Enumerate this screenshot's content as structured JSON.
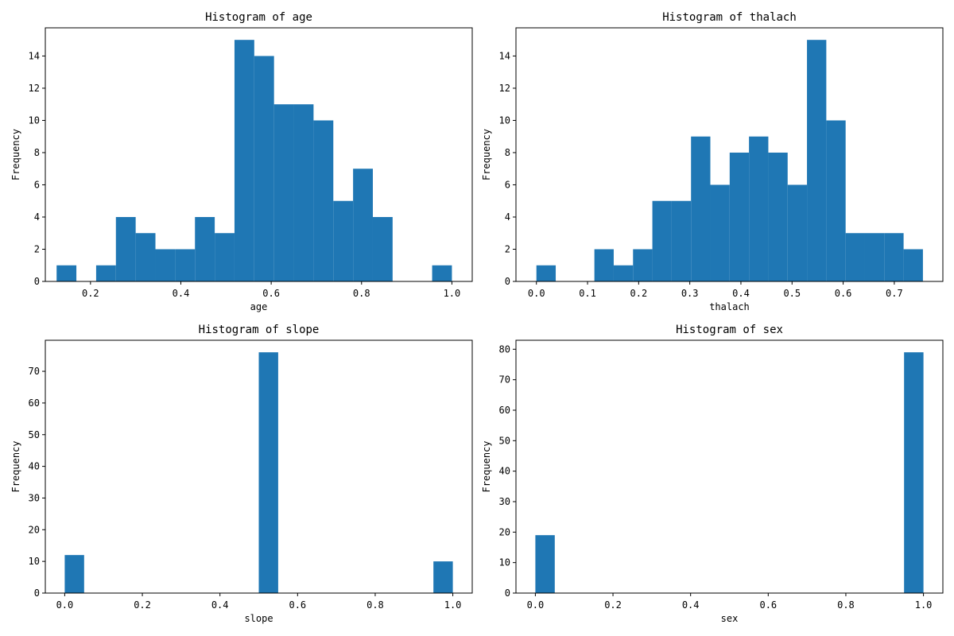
{
  "colors": {
    "bar": "#1f77b4",
    "axes": "#000000",
    "background": "#ffffff"
  },
  "chart_data": [
    {
      "type": "bar",
      "title": "Histogram of age",
      "xlabel": "age",
      "ylabel": "Frequency",
      "xlim": [
        0.1,
        1.045
      ],
      "ylim": [
        0,
        15.75
      ],
      "xticks": [
        0.2,
        0.4,
        0.6,
        0.8,
        1.0
      ],
      "xtick_labels": [
        "0.2",
        "0.4",
        "0.6",
        "0.8",
        "1.0"
      ],
      "yticks": [
        0,
        2,
        4,
        6,
        8,
        10,
        12,
        14
      ],
      "ytick_labels": [
        "0",
        "2",
        "4",
        "6",
        "8",
        "10",
        "12",
        "14"
      ],
      "bin_range": [
        0.125,
        1.0
      ],
      "values": [
        1,
        0,
        1,
        4,
        3,
        2,
        2,
        4,
        3,
        15,
        14,
        11,
        11,
        10,
        5,
        7,
        4,
        0,
        0,
        1
      ]
    },
    {
      "type": "bar",
      "title": "Histogram of thalach",
      "xlabel": "thalach",
      "ylabel": "Frequency",
      "xlim": [
        -0.04,
        0.795
      ],
      "ylim": [
        0,
        15.75
      ],
      "xticks": [
        0.0,
        0.1,
        0.2,
        0.3,
        0.4,
        0.5,
        0.6,
        0.7
      ],
      "xtick_labels": [
        "0.0",
        "0.1",
        "0.2",
        "0.3",
        "0.4",
        "0.5",
        "0.6",
        "0.7"
      ],
      "yticks": [
        0,
        2,
        4,
        6,
        8,
        10,
        12,
        14
      ],
      "ytick_labels": [
        "0",
        "2",
        "4",
        "6",
        "8",
        "10",
        "12",
        "14"
      ],
      "bin_range": [
        0.0,
        0.756
      ],
      "values": [
        1,
        0,
        0,
        2,
        1,
        2,
        5,
        5,
        9,
        6,
        8,
        9,
        8,
        6,
        15,
        10,
        3,
        3,
        3,
        2
      ]
    },
    {
      "type": "bar",
      "title": "Histogram of slope",
      "xlabel": "slope",
      "ylabel": "Frequency",
      "xlim": [
        -0.05,
        1.05
      ],
      "ylim": [
        0,
        79.8
      ],
      "xticks": [
        0.0,
        0.2,
        0.4,
        0.6,
        0.8,
        1.0
      ],
      "xtick_labels": [
        "0.0",
        "0.2",
        "0.4",
        "0.6",
        "0.8",
        "1.0"
      ],
      "yticks": [
        0,
        10,
        20,
        30,
        40,
        50,
        60,
        70
      ],
      "ytick_labels": [
        "0",
        "10",
        "20",
        "30",
        "40",
        "50",
        "60",
        "70"
      ],
      "bin_range": [
        0.0,
        1.0
      ],
      "values": [
        12,
        0,
        0,
        0,
        0,
        0,
        0,
        0,
        0,
        0,
        76,
        0,
        0,
        0,
        0,
        0,
        0,
        0,
        0,
        10
      ]
    },
    {
      "type": "bar",
      "title": "Histogram of sex",
      "xlabel": "sex",
      "ylabel": "Frequency",
      "xlim": [
        -0.05,
        1.05
      ],
      "ylim": [
        0,
        82.95
      ],
      "xticks": [
        0.0,
        0.2,
        0.4,
        0.6,
        0.8,
        1.0
      ],
      "xtick_labels": [
        "0.0",
        "0.2",
        "0.4",
        "0.6",
        "0.8",
        "1.0"
      ],
      "yticks": [
        0,
        10,
        20,
        30,
        40,
        50,
        60,
        70,
        80
      ],
      "ytick_labels": [
        "0",
        "10",
        "20",
        "30",
        "40",
        "50",
        "60",
        "70",
        "80"
      ],
      "bin_range": [
        0.0,
        1.0
      ],
      "values": [
        19,
        0,
        0,
        0,
        0,
        0,
        0,
        0,
        0,
        0,
        0,
        0,
        0,
        0,
        0,
        0,
        0,
        0,
        0,
        79
      ]
    }
  ]
}
